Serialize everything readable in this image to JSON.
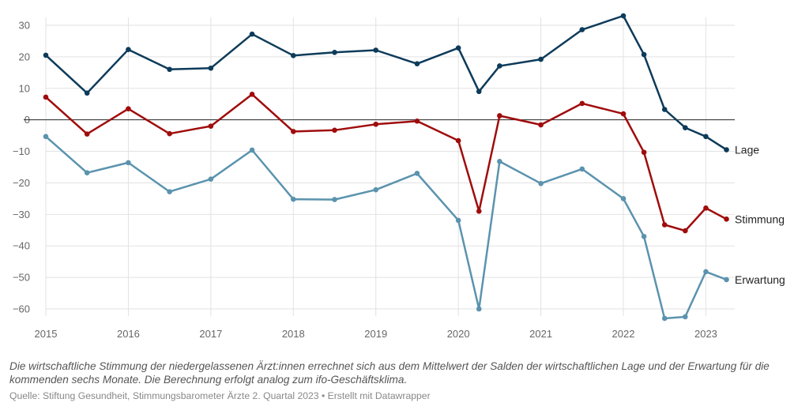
{
  "chart_data": {
    "type": "line",
    "xlim": [
      2015,
      2023.35
    ],
    "ylim": [
      -63,
      32
    ],
    "x_ticks": [
      "2015",
      "2016",
      "2017",
      "2018",
      "2019",
      "2020",
      "2021",
      "2022",
      "2023"
    ],
    "y_ticks": [
      "30",
      "20",
      "10",
      "0",
      "−10",
      "−20",
      "−30",
      "−40",
      "−50",
      "−60"
    ],
    "grid": true,
    "x": [
      2015.0,
      2015.5,
      2016.0,
      2016.5,
      2017.0,
      2017.5,
      2018.0,
      2018.5,
      2019.0,
      2019.5,
      2020.0,
      2020.25,
      2020.5,
      2021.0,
      2021.5,
      2022.0,
      2022.25,
      2022.5,
      2022.75,
      2023.0,
      2023.25
    ],
    "series": [
      {
        "name": "Lage",
        "color": "#0d3b5a",
        "values": [
          20.5,
          8.5,
          22.3,
          16.0,
          16.4,
          27.2,
          20.4,
          21.4,
          22.1,
          17.8,
          22.8,
          9.0,
          17.1,
          19.2,
          28.6,
          33.0,
          20.7,
          3.3,
          -2.5,
          -5.3,
          -9.5
        ]
      },
      {
        "name": "Stimmung",
        "color": "#a00c0c",
        "values": [
          7.2,
          -4.5,
          3.5,
          -4.4,
          -2.0,
          8.1,
          -3.7,
          -3.3,
          -1.4,
          -0.4,
          -6.6,
          -29.0,
          1.3,
          -1.6,
          5.2,
          1.9,
          -10.3,
          -33.3,
          -35.2,
          -28.0,
          -31.5
        ]
      },
      {
        "name": "Erwartung",
        "color": "#5b93ae",
        "values": [
          -5.3,
          -16.8,
          -13.6,
          -22.8,
          -18.8,
          -9.6,
          -25.2,
          -25.3,
          -22.2,
          -17.0,
          -31.9,
          -60.0,
          -13.2,
          -20.2,
          -15.6,
          -25.0,
          -37.0,
          -63.0,
          -62.5,
          -48.2,
          -50.7
        ]
      }
    ]
  },
  "description": "Die wirtschaftliche Stimmung der niedergelassenen Ärzt:innen errechnet sich aus dem Mittelwert der Salden der wirtschaftlichen Lage und der Erwartung für die kommenden sechs Monate. Die Berechnung erfolgt analog zum ifo-Geschäftsklima.",
  "source": "Quelle: Stiftung Gesundheit, Stimmungsbarometer Ärzte 2. Quartal 2023 • Erstellt mit Datawrapper"
}
